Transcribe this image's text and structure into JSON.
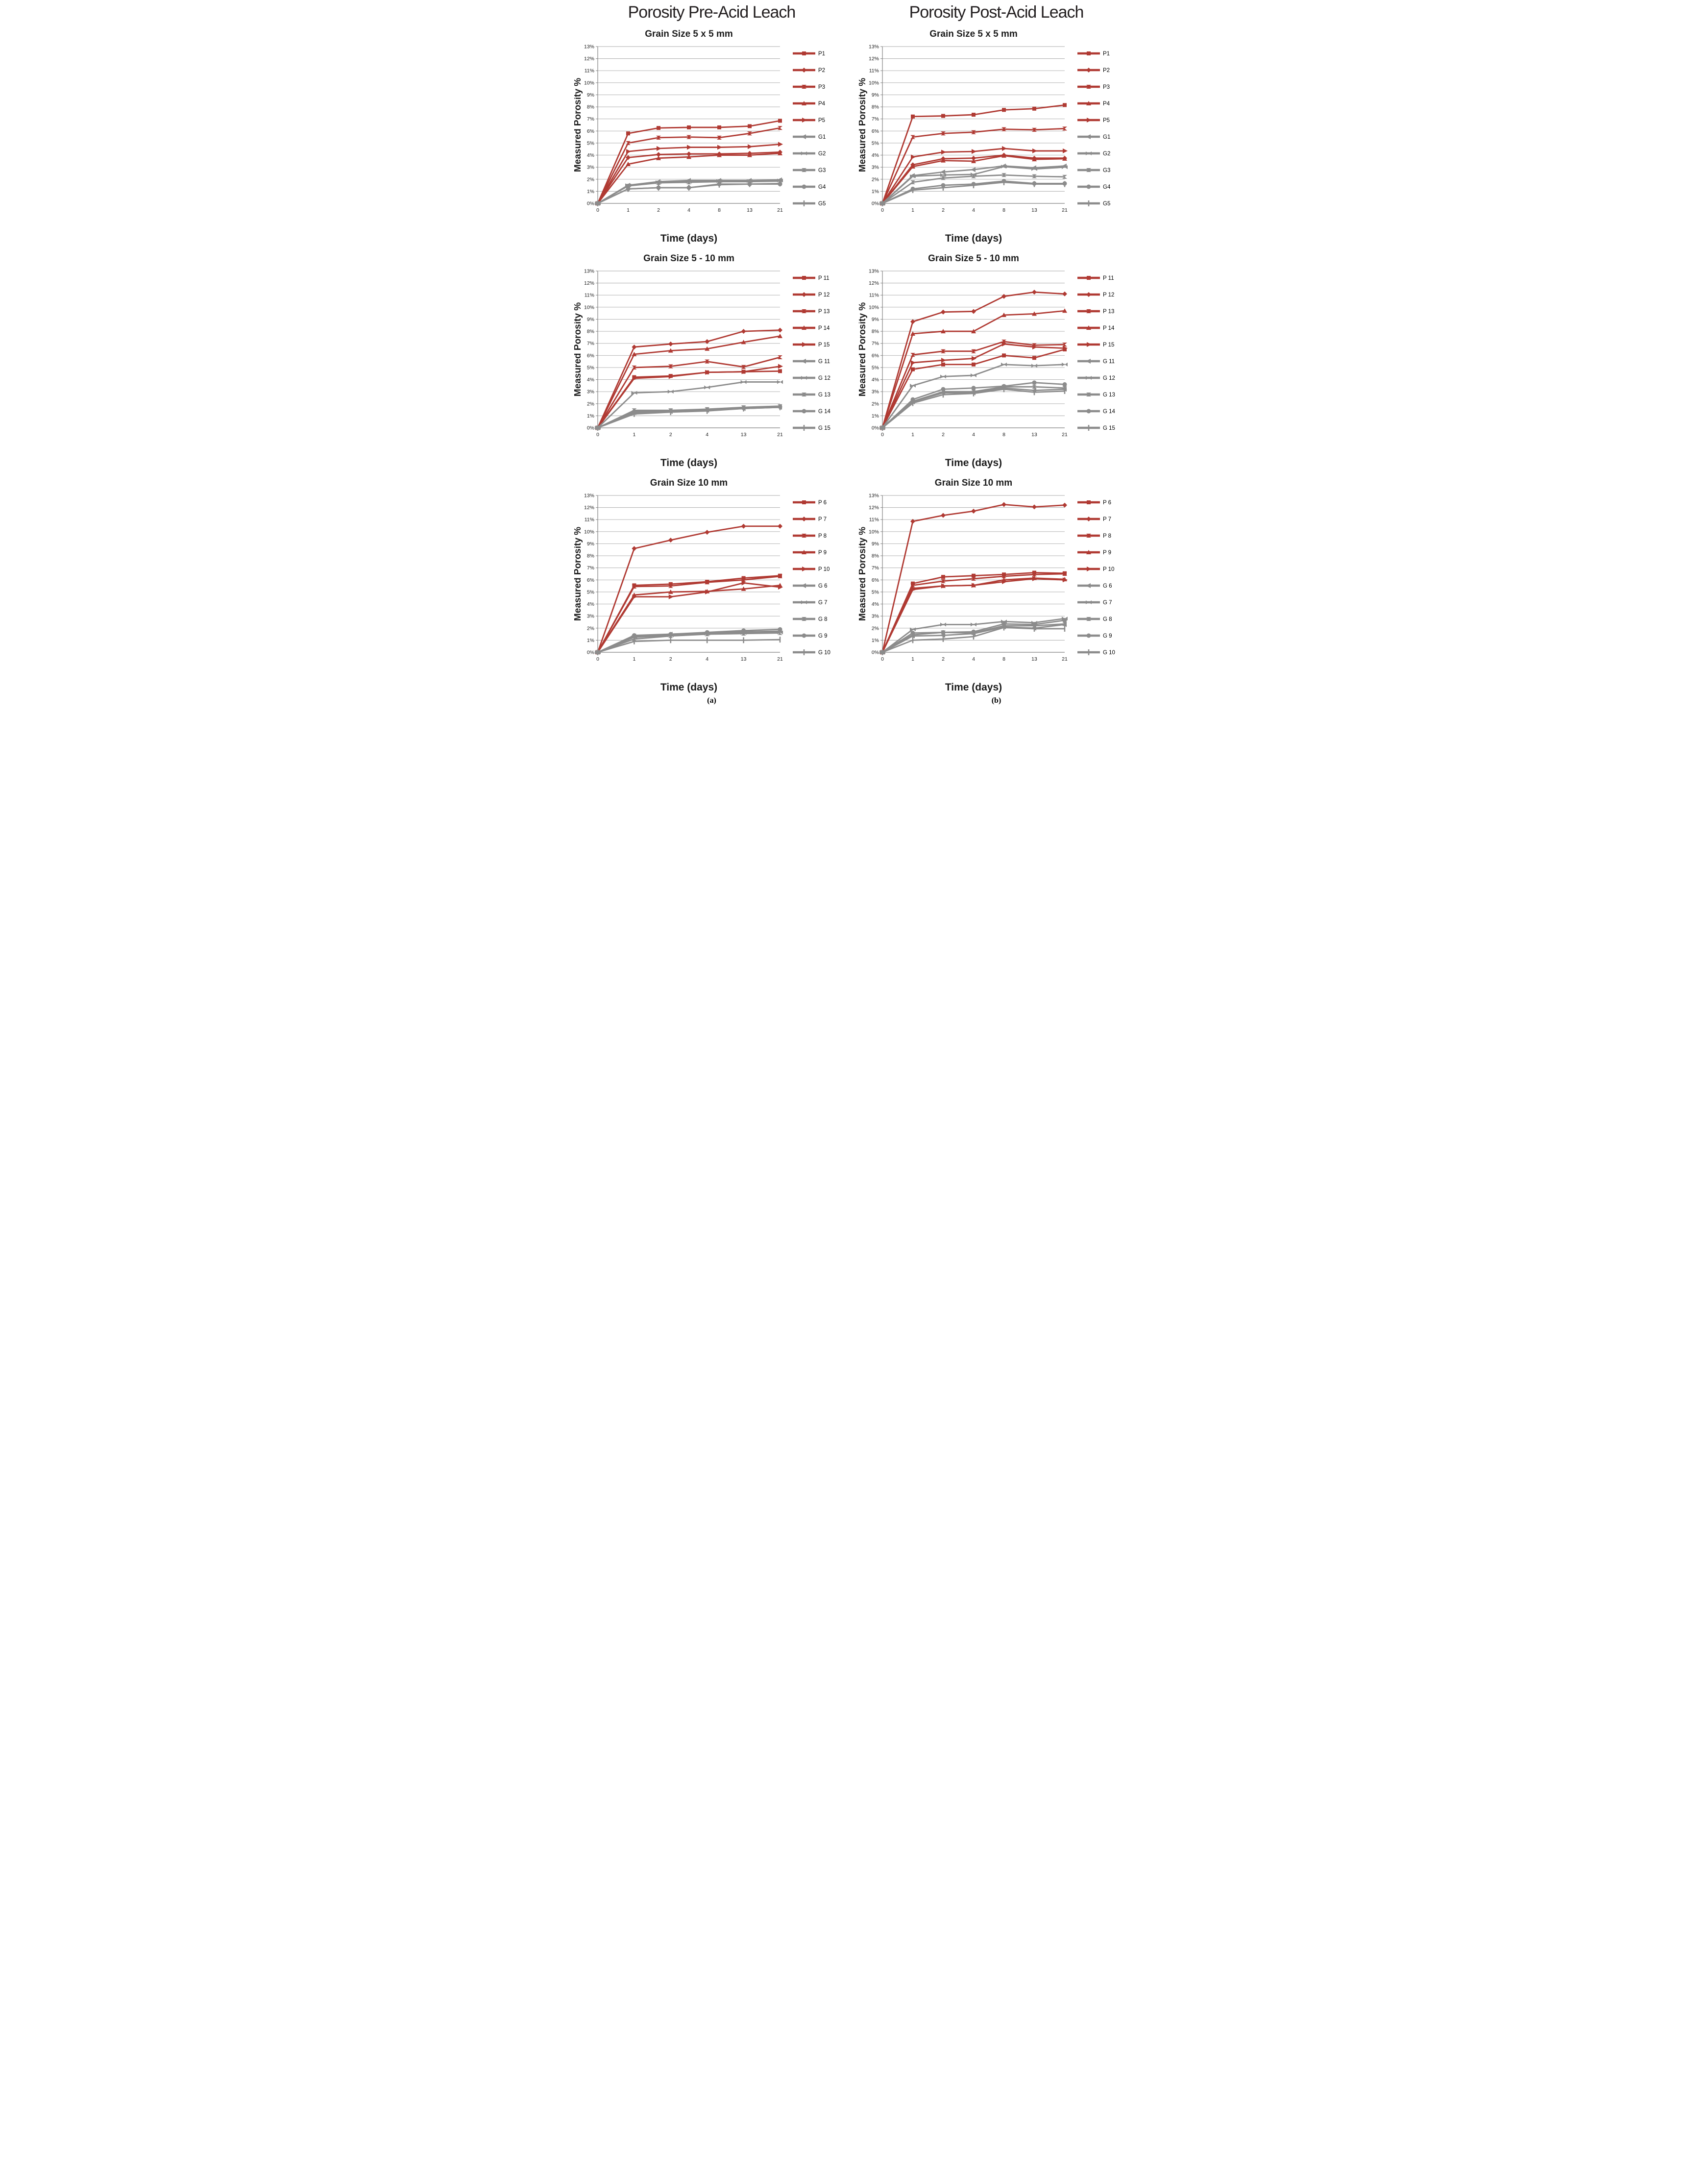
{
  "page": {
    "left_title": "Porosity Pre-Acid Leach",
    "right_title": "Porosity Post-Acid Leach",
    "caption_a": "(a)",
    "caption_b": "(b)"
  },
  "colors": {
    "red_series": "#b03a33",
    "gray_series": "#8c8c8c",
    "grid": "#a9a9a9",
    "axis": "#808080",
    "text": "#1a1a1a"
  },
  "axes": {
    "y_tick_labels": [
      "0%",
      "1%",
      "2%",
      "3%",
      "4%",
      "5%",
      "6%",
      "7%",
      "8%",
      "9%",
      "10%",
      "11%",
      "12%",
      "13%"
    ],
    "ylim": [
      0,
      13
    ],
    "grid": "on",
    "legend_position": "right"
  },
  "chart_data": [
    {
      "id": "pre-5x5",
      "type": "line",
      "column": "a",
      "title": "Grain Size 5 x 5 mm",
      "xlabel": "Time (days)",
      "ylabel": "Measured Porosity %",
      "x_tick_labels": [
        "0",
        "1",
        "2",
        "4",
        "8",
        "13",
        "21"
      ],
      "series": [
        {
          "name": "P1",
          "group": "red",
          "marker": "square",
          "values": [
            0,
            5.8,
            6.25,
            6.3,
            6.3,
            6.4,
            6.85
          ]
        },
        {
          "name": "P2",
          "group": "red",
          "marker": "diamond",
          "values": [
            0,
            3.8,
            4.05,
            4.1,
            4.1,
            4.15,
            4.25
          ]
        },
        {
          "name": "P3",
          "group": "red",
          "marker": "bowtie",
          "values": [
            0,
            5.0,
            5.45,
            5.5,
            5.45,
            5.8,
            6.25
          ]
        },
        {
          "name": "P4",
          "group": "red",
          "marker": "triangle-up",
          "values": [
            0,
            3.25,
            3.75,
            3.85,
            4.0,
            4.0,
            4.15
          ]
        },
        {
          "name": "P5",
          "group": "red",
          "marker": "triangle-right",
          "values": [
            0,
            4.3,
            4.55,
            4.65,
            4.65,
            4.7,
            4.9
          ]
        },
        {
          "name": "G1",
          "group": "gray",
          "marker": "triangle-left",
          "values": [
            0,
            1.5,
            1.8,
            1.9,
            1.9,
            1.9,
            1.95
          ]
        },
        {
          "name": "G2",
          "group": "gray",
          "marker": "cross",
          "values": [
            0,
            1.5,
            1.75,
            1.8,
            1.85,
            1.85,
            1.9
          ]
        },
        {
          "name": "G3",
          "group": "gray",
          "marker": "bowtie",
          "values": [
            0,
            1.45,
            1.7,
            1.75,
            1.8,
            1.8,
            1.85
          ]
        },
        {
          "name": "G4",
          "group": "gray",
          "marker": "circle",
          "values": [
            0,
            1.2,
            1.3,
            1.3,
            1.6,
            1.6,
            1.6
          ]
        },
        {
          "name": "G5",
          "group": "gray",
          "marker": "plus",
          "values": [
            0,
            1.2,
            1.3,
            1.3,
            1.55,
            1.6,
            1.65
          ]
        }
      ]
    },
    {
      "id": "post-5x5",
      "type": "line",
      "column": "b",
      "title": "Grain Size 5 x 5 mm",
      "xlabel": "Time (days)",
      "ylabel": "Measured Porosity %",
      "x_tick_labels": [
        "0",
        "1",
        "2",
        "4",
        "8",
        "13",
        "21"
      ],
      "series": [
        {
          "name": "P1",
          "group": "red",
          "marker": "square",
          "values": [
            0,
            7.2,
            7.25,
            7.35,
            7.75,
            7.85,
            8.15
          ]
        },
        {
          "name": "P2",
          "group": "red",
          "marker": "diamond",
          "values": [
            0,
            3.2,
            3.7,
            3.75,
            4.0,
            3.75,
            3.75
          ]
        },
        {
          "name": "P3",
          "group": "red",
          "marker": "bowtie",
          "values": [
            0,
            5.5,
            5.8,
            5.9,
            6.15,
            6.1,
            6.2
          ]
        },
        {
          "name": "P4",
          "group": "red",
          "marker": "triangle-up",
          "values": [
            0,
            3.05,
            3.55,
            3.5,
            3.95,
            3.65,
            3.7
          ]
        },
        {
          "name": "P5",
          "group": "red",
          "marker": "triangle-right",
          "values": [
            0,
            3.85,
            4.25,
            4.3,
            4.55,
            4.35,
            4.35
          ]
        },
        {
          "name": "G1",
          "group": "gray",
          "marker": "triangle-left",
          "values": [
            0,
            2.3,
            2.6,
            2.8,
            3.1,
            2.95,
            3.1
          ]
        },
        {
          "name": "G2",
          "group": "gray",
          "marker": "cross",
          "values": [
            0,
            2.25,
            2.35,
            2.4,
            3.05,
            2.85,
            3.0
          ]
        },
        {
          "name": "G3",
          "group": "gray",
          "marker": "bowtie",
          "values": [
            0,
            1.75,
            2.1,
            2.25,
            2.35,
            2.25,
            2.2
          ]
        },
        {
          "name": "G4",
          "group": "gray",
          "marker": "circle",
          "values": [
            0,
            1.2,
            1.5,
            1.6,
            1.85,
            1.65,
            1.65
          ]
        },
        {
          "name": "G5",
          "group": "gray",
          "marker": "plus",
          "values": [
            0,
            1.1,
            1.3,
            1.5,
            1.75,
            1.6,
            1.6
          ]
        }
      ]
    },
    {
      "id": "pre-5-10",
      "type": "line",
      "column": "a",
      "title": "Grain Size 5 - 10 mm",
      "xlabel": "Time (days)",
      "ylabel": "Measured Porosity  %",
      "x_tick_labels": [
        "0",
        "1",
        "2",
        "4",
        "13",
        "21"
      ],
      "series": [
        {
          "name": "P 11",
          "group": "red",
          "marker": "square",
          "values": [
            0,
            4.2,
            4.3,
            4.6,
            4.65,
            4.7
          ]
        },
        {
          "name": "P 12",
          "group": "red",
          "marker": "diamond",
          "values": [
            0,
            6.7,
            6.95,
            7.15,
            8.0,
            8.1
          ]
        },
        {
          "name": "P 13",
          "group": "red",
          "marker": "bowtie",
          "values": [
            0,
            5.0,
            5.1,
            5.5,
            5.05,
            5.85
          ]
        },
        {
          "name": "P 14",
          "group": "red",
          "marker": "triangle-up",
          "values": [
            0,
            6.1,
            6.4,
            6.55,
            7.1,
            7.6
          ]
        },
        {
          "name": "P 15",
          "group": "red",
          "marker": "triangle-right",
          "values": [
            0,
            4.1,
            4.25,
            4.6,
            4.65,
            5.1
          ]
        },
        {
          "name": "G 11",
          "group": "gray",
          "marker": "triangle-left",
          "values": [
            0,
            1.25,
            1.35,
            1.45,
            1.6,
            1.7
          ]
        },
        {
          "name": "G 12",
          "group": "gray",
          "marker": "cross",
          "values": [
            0,
            2.9,
            3.0,
            3.35,
            3.8,
            3.8
          ]
        },
        {
          "name": "G 13",
          "group": "gray",
          "marker": "bowtie",
          "values": [
            0,
            1.45,
            1.45,
            1.55,
            1.7,
            1.8
          ]
        },
        {
          "name": "G 14",
          "group": "gray",
          "marker": "circle",
          "values": [
            0,
            1.35,
            1.4,
            1.5,
            1.65,
            1.75
          ]
        },
        {
          "name": "G 15",
          "group": "gray",
          "marker": "plus",
          "values": [
            0,
            1.15,
            1.3,
            1.4,
            1.6,
            1.7
          ]
        }
      ]
    },
    {
      "id": "post-5-10",
      "type": "line",
      "column": "b",
      "title": "Grain Size 5 - 10 mm",
      "xlabel": "Time (days)",
      "ylabel": "Measured Porosity  %",
      "x_tick_labels": [
        "0",
        "1",
        "2",
        "4",
        "8",
        "13",
        "21"
      ],
      "series": [
        {
          "name": "P 11",
          "group": "red",
          "marker": "square",
          "values": [
            0,
            4.85,
            5.25,
            5.25,
            6.0,
            5.8,
            6.5
          ]
        },
        {
          "name": "P 12",
          "group": "red",
          "marker": "diamond",
          "values": [
            0,
            8.8,
            9.6,
            9.65,
            10.9,
            11.25,
            11.1
          ]
        },
        {
          "name": "P 13",
          "group": "red",
          "marker": "bowtie",
          "values": [
            0,
            6.05,
            6.35,
            6.35,
            7.15,
            6.85,
            6.9
          ]
        },
        {
          "name": "P 14",
          "group": "red",
          "marker": "triangle-up",
          "values": [
            0,
            7.8,
            8.0,
            8.0,
            9.35,
            9.45,
            9.7
          ]
        },
        {
          "name": "P 15",
          "group": "red",
          "marker": "triangle-right",
          "values": [
            0,
            5.4,
            5.6,
            5.75,
            6.95,
            6.7,
            6.6
          ]
        },
        {
          "name": "G 11",
          "group": "gray",
          "marker": "triangle-left",
          "values": [
            0,
            2.15,
            2.9,
            2.9,
            3.3,
            3.1,
            3.2
          ]
        },
        {
          "name": "G 12",
          "group": "gray",
          "marker": "cross",
          "values": [
            0,
            3.5,
            4.25,
            4.35,
            5.25,
            5.15,
            5.25
          ]
        },
        {
          "name": "G 13",
          "group": "gray",
          "marker": "bowtie",
          "values": [
            0,
            2.2,
            3.0,
            3.0,
            3.4,
            3.4,
            3.3
          ]
        },
        {
          "name": "G 14",
          "group": "gray",
          "marker": "circle",
          "values": [
            0,
            2.35,
            3.2,
            3.3,
            3.45,
            3.75,
            3.6
          ]
        },
        {
          "name": "G 15",
          "group": "gray",
          "marker": "plus",
          "values": [
            0,
            2.05,
            2.75,
            2.85,
            3.2,
            2.95,
            3.05
          ]
        }
      ]
    },
    {
      "id": "pre-10",
      "type": "line",
      "column": "a",
      "title": "Grain Size 10 mm",
      "xlabel": "Time (days)",
      "ylabel": "Measured Porosity %",
      "x_tick_labels": [
        "0",
        "1",
        "2",
        "4",
        "13",
        "21"
      ],
      "series": [
        {
          "name": "P 6",
          "group": "red",
          "marker": "square",
          "values": [
            0,
            5.55,
            5.65,
            5.85,
            6.15,
            6.35
          ]
        },
        {
          "name": "P 7",
          "group": "red",
          "marker": "diamond",
          "values": [
            0,
            8.6,
            9.3,
            9.95,
            10.45,
            10.45
          ]
        },
        {
          "name": "P 8",
          "group": "red",
          "marker": "bowtie",
          "values": [
            0,
            5.45,
            5.5,
            5.8,
            6.0,
            6.3
          ]
        },
        {
          "name": "P 9",
          "group": "red",
          "marker": "triangle-up",
          "values": [
            0,
            4.75,
            5.0,
            5.05,
            5.25,
            5.55
          ]
        },
        {
          "name": "P 10",
          "group": "red",
          "marker": "triangle-right",
          "values": [
            0,
            4.6,
            4.6,
            5.0,
            5.75,
            5.4
          ]
        },
        {
          "name": "G 6",
          "group": "gray",
          "marker": "triangle-left",
          "values": [
            0,
            1.35,
            1.5,
            1.6,
            1.7,
            1.75
          ]
        },
        {
          "name": "G 7",
          "group": "gray",
          "marker": "cross",
          "values": [
            0,
            1.25,
            1.4,
            1.55,
            1.6,
            1.65
          ]
        },
        {
          "name": "G 8",
          "group": "gray",
          "marker": "bowtie",
          "values": [
            0,
            1.1,
            1.35,
            1.5,
            1.55,
            1.6
          ]
        },
        {
          "name": "G 9",
          "group": "gray",
          "marker": "circle",
          "values": [
            0,
            1.4,
            1.5,
            1.65,
            1.8,
            1.9
          ]
        },
        {
          "name": "G 10",
          "group": "gray",
          "marker": "plus",
          "values": [
            0,
            0.9,
            1.0,
            1.0,
            1.0,
            1.05
          ]
        }
      ]
    },
    {
      "id": "post-10",
      "type": "line",
      "column": "b",
      "title": "Grain Size 10 mm",
      "xlabel": "Time (days)",
      "ylabel": "Measured Porosity %",
      "x_tick_labels": [
        "0",
        "1",
        "2",
        "4",
        "8",
        "13",
        "21"
      ],
      "series": [
        {
          "name": "P 6",
          "group": "red",
          "marker": "square",
          "values": [
            0,
            5.7,
            6.25,
            6.35,
            6.45,
            6.6,
            6.55
          ]
        },
        {
          "name": "P 7",
          "group": "red",
          "marker": "diamond",
          "values": [
            0,
            10.85,
            11.35,
            11.7,
            12.25,
            12.05,
            12.2
          ]
        },
        {
          "name": "P 8",
          "group": "red",
          "marker": "bowtie",
          "values": [
            0,
            5.55,
            5.9,
            6.1,
            6.3,
            6.45,
            6.5
          ]
        },
        {
          "name": "P 9",
          "group": "red",
          "marker": "triangle-up",
          "values": [
            0,
            5.3,
            5.5,
            5.55,
            6.0,
            6.15,
            6.05
          ]
        },
        {
          "name": "P 10",
          "group": "red",
          "marker": "triangle-right",
          "values": [
            0,
            5.2,
            5.5,
            5.55,
            5.85,
            6.1,
            6.0
          ]
        },
        {
          "name": "G 6",
          "group": "gray",
          "marker": "triangle-left",
          "values": [
            0,
            1.35,
            1.4,
            1.55,
            2.1,
            2.0,
            2.3
          ]
        },
        {
          "name": "G 7",
          "group": "gray",
          "marker": "cross",
          "values": [
            0,
            1.9,
            2.3,
            2.3,
            2.55,
            2.45,
            2.8
          ]
        },
        {
          "name": "G 8",
          "group": "gray",
          "marker": "bowtie",
          "values": [
            0,
            1.45,
            1.65,
            1.6,
            2.2,
            2.2,
            2.35
          ]
        },
        {
          "name": "G 9",
          "group": "gray",
          "marker": "circle",
          "values": [
            0,
            1.6,
            1.65,
            1.7,
            2.35,
            2.3,
            2.65
          ]
        },
        {
          "name": "G 10",
          "group": "gray",
          "marker": "plus",
          "values": [
            0,
            1.0,
            1.1,
            1.3,
            2.05,
            1.95,
            1.95
          ]
        }
      ]
    }
  ]
}
